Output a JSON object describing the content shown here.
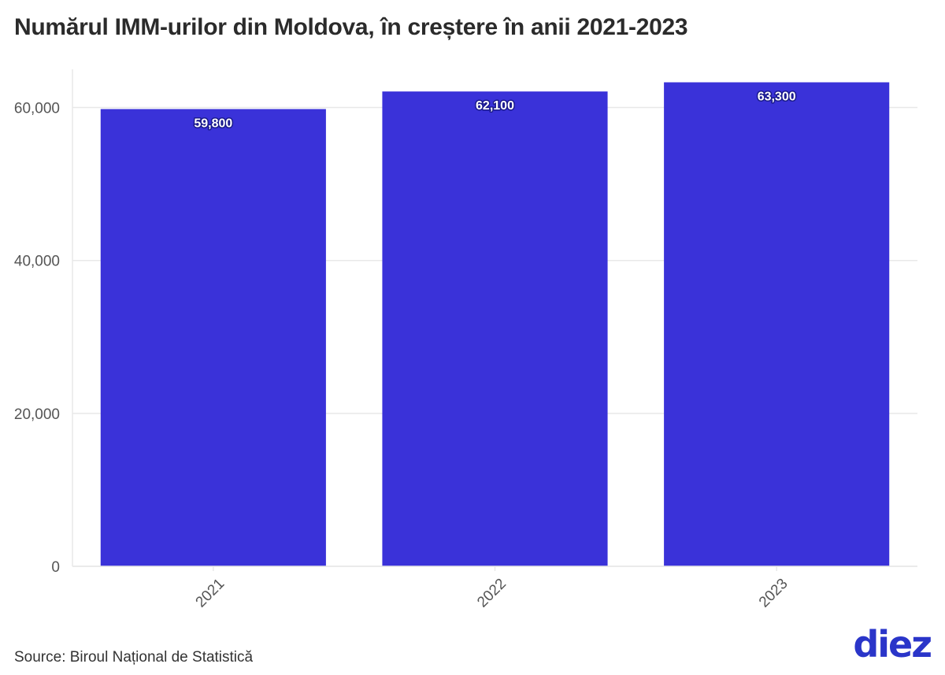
{
  "page": {
    "title": "Numărul IMM-urilor din Moldova, în creștere în anii 2021-2023",
    "source": "Source: Biroul Național de Statistică",
    "brand": {
      "text": "diez",
      "color": "#2a35c9"
    }
  },
  "chart_data": {
    "type": "bar",
    "title": "Numărul IMM-urilor din Moldova, în creștere în anii 2021-2023",
    "xlabel": "",
    "ylabel": "",
    "categories": [
      "2021",
      "2022",
      "2023"
    ],
    "values": [
      59800,
      62100,
      63300
    ],
    "value_labels": [
      "59,800",
      "62,100",
      "63,300"
    ],
    "ylim": [
      0,
      65000
    ],
    "yticks": [
      0,
      20000,
      40000,
      60000
    ],
    "ytick_labels": [
      "0",
      "20,000",
      "40,000",
      "60,000"
    ],
    "grid": true,
    "legend": "none",
    "x_tick_rotation": "-45°",
    "colors": {
      "bar": "#3a32d9",
      "label_outline": "#1a1a8c",
      "gridline": "#e8e8e8",
      "axis_text": "#555555"
    }
  }
}
